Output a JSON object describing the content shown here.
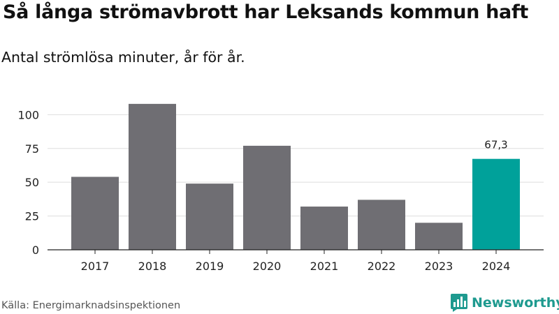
{
  "chart_data": {
    "type": "bar",
    "title": "Så långa strömavbrott har Leksands kommun haft",
    "subtitle": "Antal strömlösa minuter, år för år.",
    "categories": [
      "2017",
      "2018",
      "2019",
      "2020",
      "2021",
      "2022",
      "2023",
      "2024"
    ],
    "values": [
      54,
      108,
      49,
      77,
      32,
      37,
      20,
      67.3
    ],
    "highlight_index": 7,
    "highlight_label": "67,3",
    "yticks": [
      0,
      25,
      50,
      75,
      100
    ],
    "ylim": [
      0,
      110
    ],
    "grid": true,
    "xlabel": "",
    "ylabel": "",
    "source": "Källa: Energimarknadsinspektionen"
  },
  "colors": {
    "bar": "#6f6e73",
    "highlight": "#00a19a",
    "grid": "#dddddd",
    "axis": "#222222",
    "brand": "#1e9a8f"
  },
  "brand": {
    "name": "Newsworthy",
    "icon": "newsworthy-logo-icon"
  }
}
